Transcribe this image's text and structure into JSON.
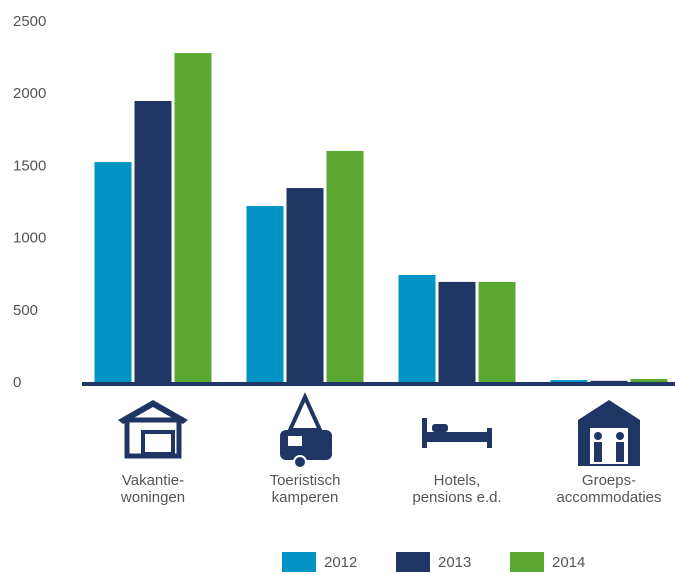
{
  "chart_data": {
    "type": "bar",
    "categories": [
      "Vakantie-\nwoningen",
      "Toeristisch\nkamperen",
      "Hotels,\npensions e.d.",
      "Groeps-\naccommodaties"
    ],
    "series": [
      {
        "name": "2012",
        "color": "#0093c4",
        "values": [
          1530,
          1226,
          748,
          20
        ]
      },
      {
        "name": "2013",
        "color": "#1f3564",
        "values": [
          1953,
          1350,
          700,
          15
        ]
      },
      {
        "name": "2014",
        "color": "#5aa832",
        "values": [
          2285,
          1607,
          700,
          28
        ]
      }
    ],
    "ylim": [
      0,
      2500
    ],
    "yticks": [
      0,
      500,
      1000,
      1500,
      2000,
      2500
    ],
    "grid": false,
    "legend": "bottom"
  }
}
